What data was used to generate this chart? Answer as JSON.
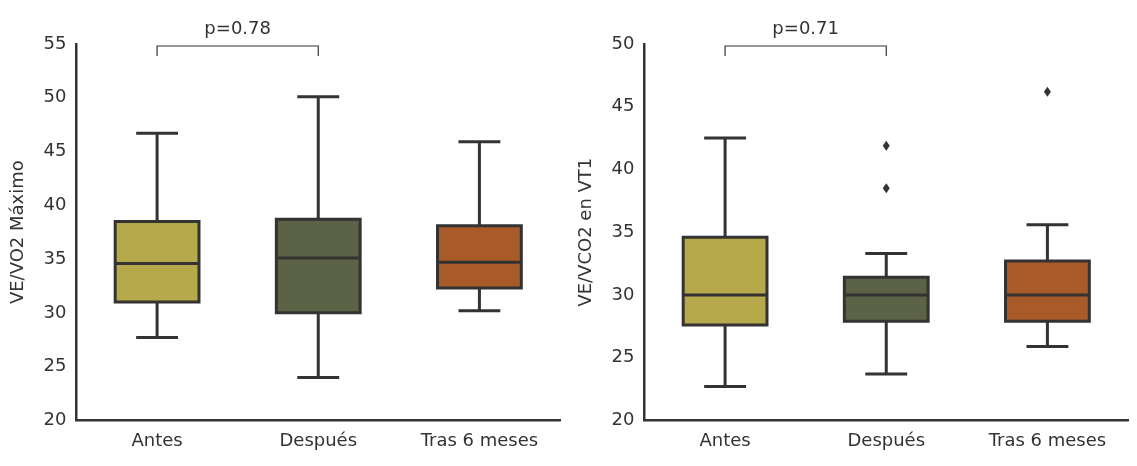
{
  "chart_data": [
    {
      "type": "box",
      "ylabel": "VE/VO2 Máximo",
      "categories": [
        "Antes",
        "Después",
        "Tras 6 meses"
      ],
      "colors": [
        "#b5a94b",
        "#5c6245",
        "#a85a29"
      ],
      "boxes": [
        {
          "low": 27.7,
          "q1": 31.0,
          "median": 34.6,
          "q3": 38.5,
          "high": 46.7
        },
        {
          "low": 24.0,
          "q1": 30.0,
          "median": 35.1,
          "q3": 38.7,
          "high": 50.1
        },
        {
          "low": 30.2,
          "q1": 32.3,
          "median": 34.7,
          "q3": 38.1,
          "high": 45.9
        }
      ],
      "ylim": [
        20,
        55
      ],
      "yticks": [
        20,
        25,
        30,
        35,
        40,
        45,
        50,
        55
      ],
      "grid": false,
      "legend": false,
      "annotations": [
        "p=0.78"
      ]
    },
    {
      "type": "box",
      "ylabel": "VE/VCO2 en VT1",
      "categories": [
        "Antes",
        "Después",
        "Tras 6 meses"
      ],
      "colors": [
        "#b5a94b",
        "#5c6245",
        "#a85a29"
      ],
      "boxes": [
        {
          "low": 22.7,
          "q1": 27.6,
          "median": 30.0,
          "q3": 34.6,
          "high": 42.5
        },
        {
          "low": 23.7,
          "q1": 27.9,
          "median": 30.0,
          "q3": 31.4,
          "high": 33.3,
          "outliers": [
            38.5,
            41.9
          ]
        },
        {
          "low": 25.9,
          "q1": 27.9,
          "median": 30.0,
          "q3": 32.7,
          "high": 35.6,
          "outliers": [
            46.2
          ]
        }
      ],
      "ylim": [
        20,
        50
      ],
      "yticks": [
        20,
        25,
        30,
        35,
        40,
        45,
        50
      ],
      "grid": false,
      "legend": false,
      "marker": "diamond",
      "annotations": [
        "p=0.71"
      ]
    }
  ]
}
